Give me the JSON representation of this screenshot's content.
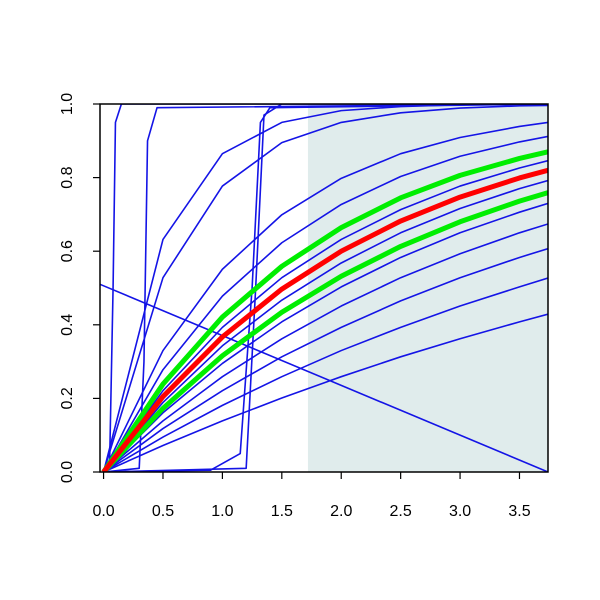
{
  "chart_data": {
    "type": "line",
    "xlim": [
      -0.03,
      3.74
    ],
    "ylim": [
      0,
      1
    ],
    "xticks": [
      {
        "value": 0,
        "label": "0.0"
      },
      0.5,
      {
        "value": 1,
        "label": "1.0"
      },
      1.5,
      {
        "value": 2,
        "label": "2.0"
      },
      2.5,
      {
        "value": 3,
        "label": "3.0"
      },
      3.5
    ],
    "yticks": [
      {
        "value": 0,
        "label": "0.0"
      },
      0.2,
      0.4,
      0.6,
      0.8,
      {
        "value": 1,
        "label": "1.0"
      }
    ],
    "shaded_region": {
      "xlim": [
        1.72,
        3.74
      ],
      "ylim": [
        0,
        1
      ],
      "color": "#e0ecec"
    },
    "series": [
      {
        "color": "#1414e6",
        "x": [
          0,
          0.5,
          1,
          1.5,
          2,
          2.5,
          3,
          3.5,
          3.74
        ],
        "values": [
          0,
          0.072,
          0.139,
          0.201,
          0.259,
          0.313,
          0.362,
          0.408,
          0.429
        ]
      },
      {
        "color": "#1414e6",
        "x": [
          0,
          0.5,
          1,
          1.5,
          2,
          2.5,
          3,
          3.5,
          3.74
        ],
        "values": [
          0,
          0.095,
          0.181,
          0.259,
          0.33,
          0.393,
          0.451,
          0.503,
          0.527
        ]
      },
      {
        "color": "#1414e6",
        "x": [
          0,
          0.5,
          1,
          1.5,
          2,
          2.5,
          3,
          3.5,
          3.74
        ],
        "values": [
          0,
          0.118,
          0.221,
          0.313,
          0.393,
          0.465,
          0.528,
          0.583,
          0.607
        ]
      },
      {
        "color": "#1414e6",
        "x": [
          0,
          0.5,
          1,
          1.5,
          2,
          2.5,
          3,
          3.5,
          3.74
        ],
        "values": [
          0,
          0.139,
          0.259,
          0.362,
          0.451,
          0.528,
          0.593,
          0.65,
          0.674
        ]
      },
      {
        "color": "#1414e6",
        "x": [
          0,
          0.5,
          1,
          1.5,
          2,
          2.5,
          3,
          3.5,
          3.74
        ],
        "values": [
          0,
          0.161,
          0.295,
          0.408,
          0.503,
          0.583,
          0.65,
          0.706,
          0.73
        ]
      },
      {
        "color": "#1414e6",
        "x": [
          0,
          0.5,
          1,
          1.5,
          2,
          2.5,
          3,
          3.5,
          3.74
        ],
        "values": [
          0,
          0.189,
          0.343,
          0.467,
          0.568,
          0.65,
          0.716,
          0.77,
          0.792
        ]
      },
      {
        "color": "#1414e6",
        "x": [
          0,
          0.5,
          1,
          1.5,
          2,
          2.5,
          3,
          3.5,
          3.74
        ],
        "values": [
          0,
          0.221,
          0.393,
          0.528,
          0.632,
          0.713,
          0.777,
          0.826,
          0.846
        ]
      },
      {
        "color": "#1414e6",
        "x": [
          0,
          0.5,
          1,
          1.5,
          2,
          2.5,
          3,
          3.5,
          3.74
        ],
        "values": [
          0,
          0.278,
          0.478,
          0.623,
          0.727,
          0.803,
          0.858,
          0.897,
          0.912
        ]
      },
      {
        "color": "#1414e6",
        "x": [
          0,
          0.5,
          1,
          1.5,
          2,
          2.5,
          3,
          3.5,
          3.74
        ],
        "values": [
          0,
          0.33,
          0.551,
          0.699,
          0.798,
          0.865,
          0.909,
          0.939,
          0.95
        ]
      },
      {
        "color": "#1414e6",
        "x": [
          0,
          0.5,
          1,
          1.5,
          2,
          2.5,
          3,
          3.5,
          3.74
        ],
        "values": [
          0,
          0.528,
          0.777,
          0.895,
          0.95,
          0.976,
          0.989,
          0.995,
          0.996
        ]
      },
      {
        "color": "#1414e6",
        "x": [
          0,
          0.5,
          1,
          1.5,
          2,
          2.5,
          3,
          3.5,
          3.74
        ],
        "values": [
          0,
          0.632,
          0.865,
          0.95,
          0.982,
          0.993,
          0.998,
          0.999,
          0.999
        ]
      },
      {
        "color": "#1414e6",
        "x": [
          0,
          0.05,
          0.08,
          0.1,
          0.15,
          3.74
        ],
        "values": [
          0,
          0.01,
          0.5,
          0.95,
          1,
          1
        ]
      },
      {
        "color": "#1414e6",
        "x": [
          0,
          0.3,
          0.34,
          0.37,
          0.45,
          3.74
        ],
        "values": [
          0,
          0.01,
          0.3,
          0.9,
          0.99,
          1
        ]
      },
      {
        "color": "#1414e6",
        "x": [
          0,
          0.9,
          1.15,
          1.25,
          1.32,
          1.4,
          3.74
        ],
        "values": [
          0,
          0.005,
          0.05,
          0.5,
          0.95,
          0.99,
          1
        ]
      },
      {
        "color": "#1414e6",
        "x": [
          0,
          1.2,
          1.28,
          1.35,
          1.5,
          3.74
        ],
        "values": [
          0,
          0.01,
          0.5,
          0.97,
          1,
          1
        ]
      },
      {
        "color": "#1414e6",
        "x": [
          -0.03,
          3.74
        ],
        "values": [
          0.51,
          0
        ]
      },
      {
        "color": "#00ee00",
        "width": 5,
        "x": [
          0,
          0.5,
          1,
          1.5,
          2,
          2.5,
          3,
          3.5,
          3.74
        ],
        "values": [
          0,
          0.173,
          0.316,
          0.434,
          0.532,
          0.613,
          0.68,
          0.736,
          0.759
        ]
      },
      {
        "color": "#00ee00",
        "width": 5,
        "x": [
          0,
          0.5,
          1,
          1.5,
          2,
          2.5,
          3,
          3.5,
          3.74
        ],
        "values": [
          0,
          0.239,
          0.421,
          0.559,
          0.664,
          0.745,
          0.806,
          0.852,
          0.87
        ]
      },
      {
        "color": "#ff0000",
        "width": 5,
        "x": [
          0,
          0.5,
          1,
          1.5,
          2,
          2.5,
          3,
          3.5,
          3.74
        ],
        "values": [
          0,
          0.205,
          0.367,
          0.497,
          0.6,
          0.682,
          0.747,
          0.799,
          0.82
        ]
      }
    ]
  }
}
